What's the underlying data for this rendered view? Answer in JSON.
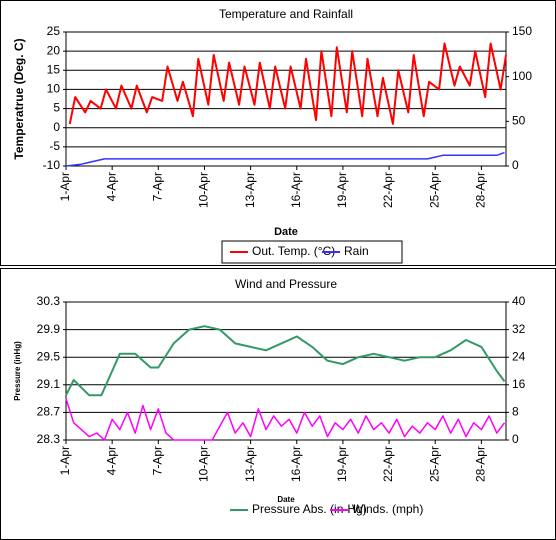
{
  "chart_data": [
    {
      "type": "line",
      "title": "Temperature and Rainfall",
      "y_label": "Temperatrue (Deg. C)",
      "x_label": "Date",
      "xlim": [
        1,
        29.6
      ],
      "xticks": [
        {
          "value": 1,
          "label": "1-Apr"
        },
        {
          "value": 4,
          "label": "4-Apr"
        },
        {
          "value": 7,
          "label": "7-Apr"
        },
        {
          "value": 10,
          "label": "10-Apr"
        },
        {
          "value": 13,
          "label": "13-Apr"
        },
        {
          "value": 16,
          "label": "16-Apr"
        },
        {
          "value": 19,
          "label": "19-Apr"
        },
        {
          "value": 22,
          "label": "22-Apr"
        },
        {
          "value": 25,
          "label": "25-Apr"
        },
        {
          "value": 28,
          "label": "28-Apr"
        }
      ],
      "ylim": [
        -10,
        25
      ],
      "yticks": [
        -10,
        -5,
        0,
        5,
        10,
        15,
        20,
        25
      ],
      "y2lim": [
        0,
        150
      ],
      "y2ticks": [
        0,
        50,
        100,
        150
      ],
      "grid": true,
      "series": [
        {
          "name": "Out. Temp. (°C)",
          "color": "#ff0000",
          "x": [
            1.25,
            1.6,
            2.25,
            2.6,
            3.25,
            3.6,
            4.25,
            4.6,
            5.25,
            5.6,
            6.25,
            6.6,
            7.25,
            7.6,
            8.25,
            8.6,
            9.25,
            9.6,
            10.25,
            10.6,
            11.25,
            11.6,
            12.25,
            12.6,
            13.25,
            13.6,
            14.25,
            14.6,
            15.25,
            15.6,
            16.25,
            16.6,
            17.25,
            17.6,
            18.25,
            18.6,
            19.25,
            19.6,
            20.25,
            20.6,
            21.25,
            21.6,
            22.25,
            22.6,
            23.25,
            23.6,
            24.25,
            24.6,
            25.25,
            25.6,
            26.25,
            26.6,
            27.25,
            27.6,
            28.25,
            28.6,
            29.25,
            29.6
          ],
          "values": [
            1,
            8,
            4,
            7,
            5,
            10,
            5,
            11,
            5,
            11,
            4,
            8,
            7,
            16,
            7,
            12,
            3,
            18,
            6,
            19,
            7,
            17,
            6,
            16,
            6,
            17,
            5,
            16,
            5,
            16,
            5,
            18,
            2,
            20,
            3,
            21,
            4,
            20,
            3,
            18,
            3,
            13,
            1,
            15,
            4,
            19,
            3,
            12,
            10,
            22,
            11,
            16,
            11,
            20,
            8,
            22,
            10,
            19
          ]
        },
        {
          "name": "Rain",
          "color": "#3333ff",
          "axis": "y2",
          "x": [
            1,
            2,
            2.5,
            3.5,
            24.5,
            25,
            25.5,
            29,
            29.5
          ],
          "values": [
            0,
            2,
            4,
            8,
            8,
            10,
            12,
            12,
            15
          ]
        }
      ]
    },
    {
      "type": "line",
      "title": "Wind and Pressure",
      "y_label": "Pressure (inHg)",
      "x_label": "Date",
      "xlim": [
        1,
        29.6
      ],
      "xticks": [
        {
          "value": 1,
          "label": "1-Apr"
        },
        {
          "value": 4,
          "label": "4-Apr"
        },
        {
          "value": 7,
          "label": "7-Apr"
        },
        {
          "value": 10,
          "label": "10-Apr"
        },
        {
          "value": 13,
          "label": "13-Apr"
        },
        {
          "value": 16,
          "label": "16-Apr"
        },
        {
          "value": 19,
          "label": "19-Apr"
        },
        {
          "value": 22,
          "label": "22-Apr"
        },
        {
          "value": 25,
          "label": "25-Apr"
        },
        {
          "value": 28,
          "label": "28-Apr"
        }
      ],
      "ylim": [
        28.3,
        30.3
      ],
      "yticks": [
        28.3,
        28.7,
        29.1,
        29.5,
        29.9,
        30.3
      ],
      "y2lim": [
        0,
        40
      ],
      "y2ticks": [
        0,
        8,
        16,
        24,
        32,
        40
      ],
      "grid": true,
      "series": [
        {
          "name": "Pressure Abs. (in-Hg)",
          "color": "#339966",
          "x": [
            1,
            1.5,
            2.5,
            3.3,
            4,
            4.5,
            5.5,
            6.5,
            7,
            8,
            9,
            10,
            11,
            12,
            13,
            14,
            15,
            16,
            17,
            18,
            19,
            20,
            21,
            22,
            23,
            24,
            25,
            26,
            27,
            28,
            29,
            29.5
          ],
          "values": [
            28.95,
            29.17,
            28.95,
            28.95,
            29.3,
            29.55,
            29.55,
            29.35,
            29.35,
            29.7,
            29.9,
            29.95,
            29.9,
            29.7,
            29.65,
            29.6,
            29.7,
            29.8,
            29.65,
            29.45,
            29.4,
            29.5,
            29.55,
            29.5,
            29.45,
            29.5,
            29.5,
            29.6,
            29.75,
            29.65,
            29.3,
            29.15
          ]
        },
        {
          "name": "Winds. (mph)",
          "color": "#ff00ff",
          "axis": "y2",
          "x": [
            1,
            1.5,
            2,
            2.5,
            3,
            3.5,
            4,
            4.5,
            5,
            5.5,
            6,
            6.5,
            7,
            7.5,
            8,
            8.5,
            9,
            9.5,
            10,
            10.5,
            11,
            11.5,
            12,
            12.5,
            13,
            13.5,
            14,
            14.5,
            15,
            15.5,
            16,
            16.5,
            17,
            17.5,
            18,
            18.5,
            19,
            19.5,
            20,
            20.5,
            21,
            21.5,
            22,
            22.5,
            23,
            23.5,
            24,
            24.5,
            25,
            25.5,
            26,
            26.5,
            27,
            27.5,
            28,
            28.5,
            29,
            29.5
          ],
          "values": [
            12,
            5,
            3,
            1,
            2,
            0,
            6,
            3,
            8,
            2,
            10,
            3,
            9,
            2,
            0,
            0,
            0,
            0,
            0,
            0,
            4,
            8,
            2,
            5,
            1,
            9,
            3,
            7,
            4,
            6,
            2,
            8,
            4,
            7,
            1,
            5,
            3,
            6,
            2,
            7,
            3,
            5,
            2,
            6,
            1,
            4,
            2,
            5,
            3,
            7,
            2,
            6,
            1,
            5,
            3,
            7,
            2,
            5
          ]
        }
      ]
    }
  ]
}
